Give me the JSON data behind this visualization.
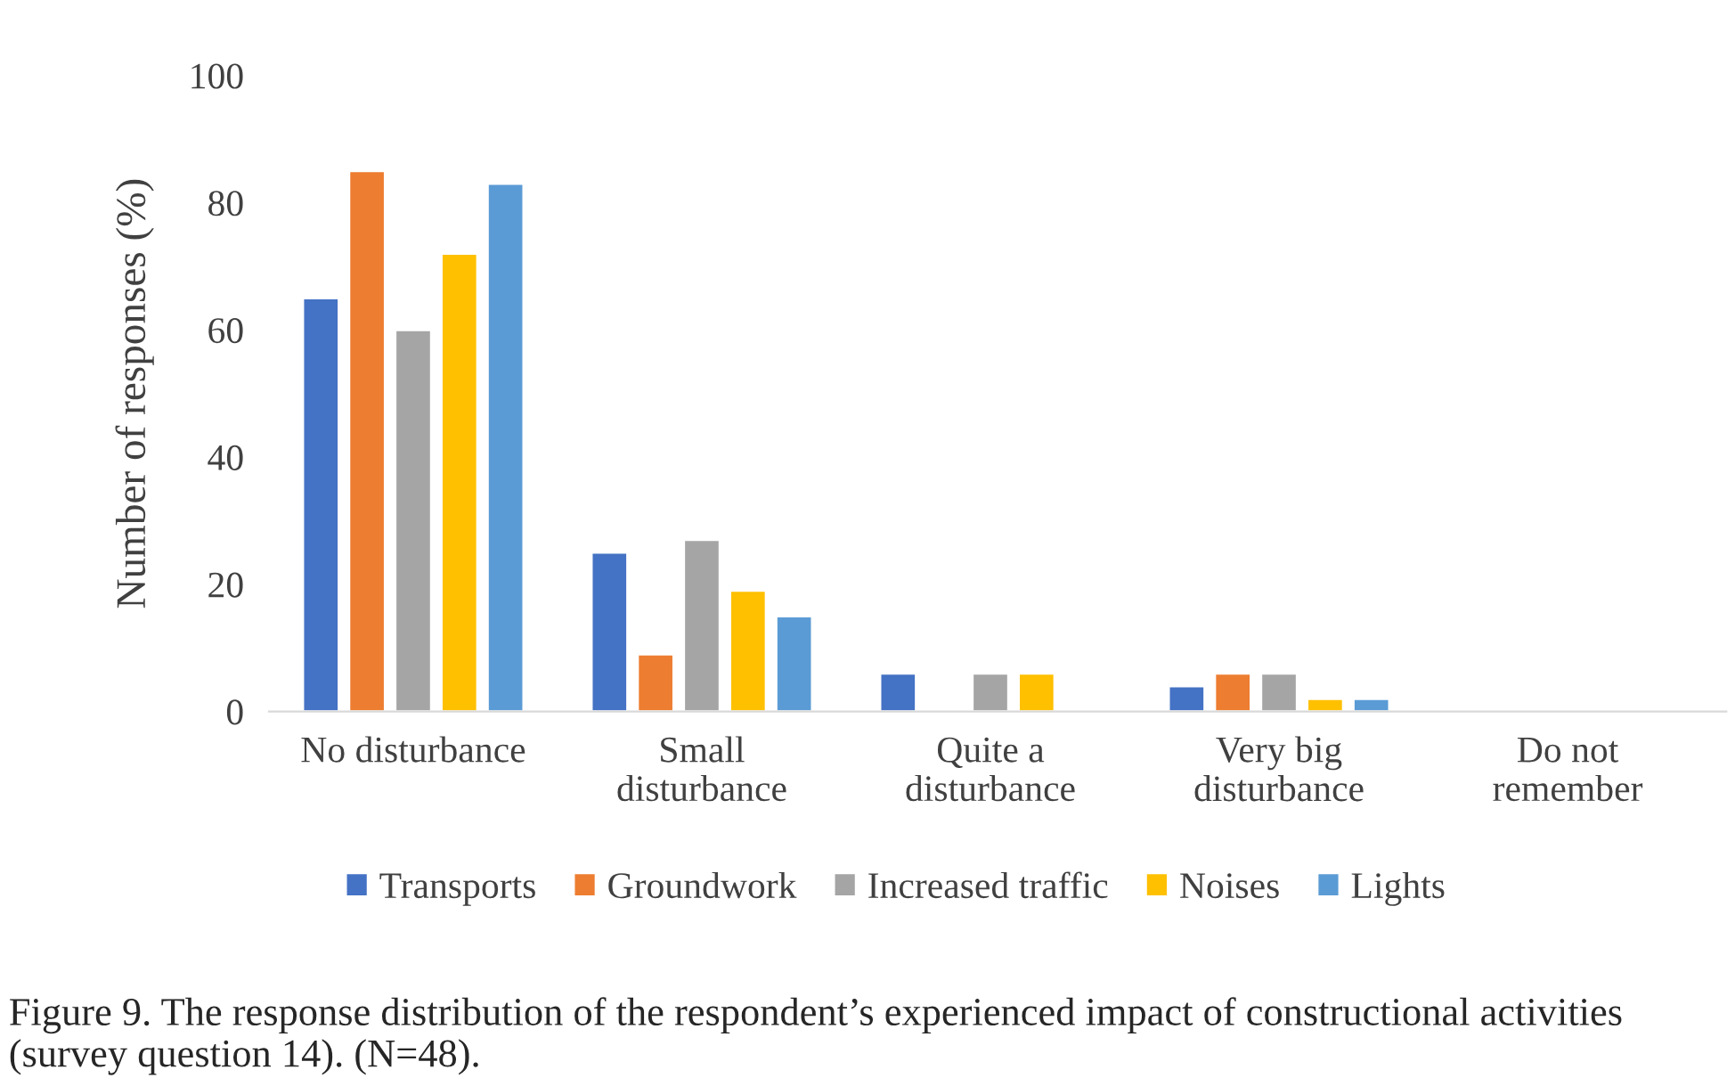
{
  "chart_data": {
    "type": "bar",
    "ylabel": "Number of responses (%)",
    "categories": [
      "No disturbance",
      "Small\ndisturbance",
      "Quite a\ndisturbance",
      "Very big\ndisturbance",
      "Do not\nremember"
    ],
    "series": [
      {
        "name": "Transports",
        "color": "#4472c4",
        "values": [
          65,
          25,
          6,
          4,
          null
        ]
      },
      {
        "name": "Groundwork",
        "color": "#ed7d31",
        "values": [
          85,
          9,
          null,
          6,
          null
        ]
      },
      {
        "name": "Increased traffic",
        "color": "#a5a5a5",
        "values": [
          60,
          27,
          6,
          6,
          null
        ]
      },
      {
        "name": "Noises",
        "color": "#ffc000",
        "values": [
          72,
          19,
          6,
          2,
          null
        ]
      },
      {
        "name": "Lights",
        "color": "#5b9bd5",
        "values": [
          83,
          15,
          null,
          2,
          null
        ]
      }
    ],
    "ylim": [
      0,
      100
    ],
    "yticks": [
      0,
      20,
      40,
      60,
      80,
      100
    ],
    "grid": false,
    "legend": "bottom",
    "annotations": [
      "Figure 9. The response distribution of the respondent’s experienced impact of constructional activities (survey question 14). (N=48)."
    ]
  }
}
